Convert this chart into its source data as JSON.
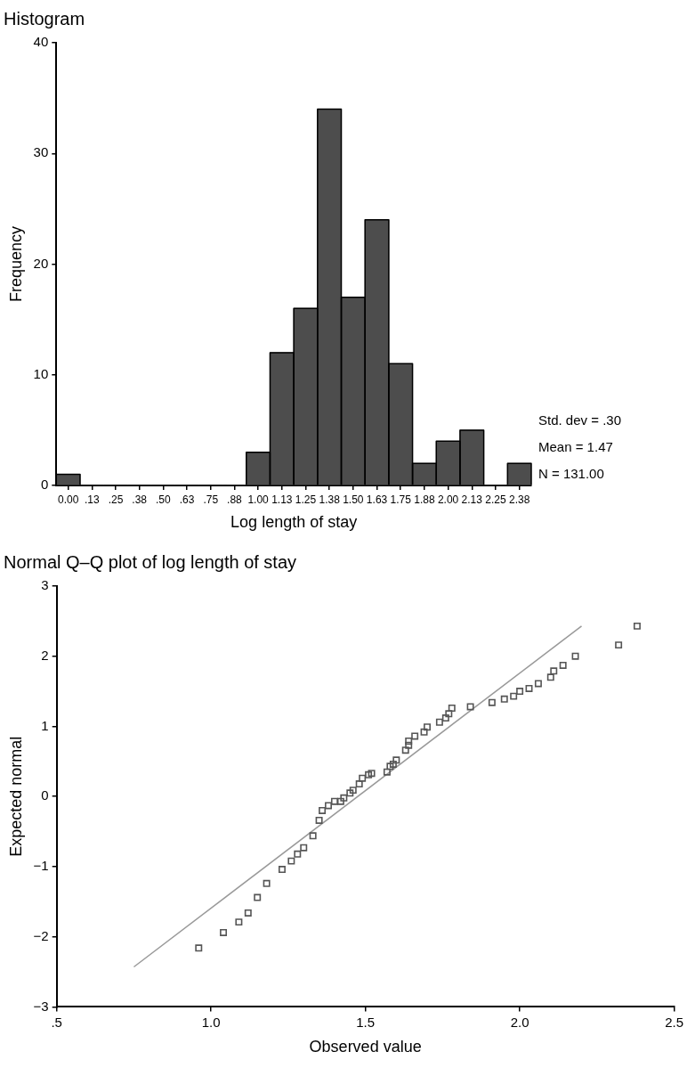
{
  "chart_data": [
    {
      "type": "histogram",
      "title": "Histogram",
      "xlabel": "Log length of stay",
      "ylabel": "Frequency",
      "color": "#4d4d4d",
      "bins": [
        -0.0625,
        0.0625,
        0.1875,
        0.3125,
        0.4375,
        0.5625,
        0.6875,
        0.8125,
        0.9375,
        1.0625,
        1.1875,
        1.3125,
        1.4375,
        1.5625,
        1.6875,
        1.8125,
        1.9375,
        2.0625,
        2.1875,
        2.3125,
        2.4375
      ],
      "values": [
        1,
        0,
        0,
        0,
        0,
        0,
        0,
        0,
        3,
        12,
        16,
        34,
        17,
        24,
        11,
        2,
        4,
        5,
        0,
        2
      ],
      "xlim": [
        -0.0625,
        2.4375
      ],
      "xticks": [
        {
          "value": 0,
          "label": "0.00"
        },
        {
          "value": 0.125,
          "label": ".13"
        },
        {
          "value": 0.25,
          "label": ".25"
        },
        {
          "value": 0.375,
          "label": ".38"
        },
        {
          "value": 0.5,
          "label": ".50"
        },
        {
          "value": 0.625,
          "label": ".63"
        },
        {
          "value": 0.75,
          "label": ".75"
        },
        {
          "value": 0.875,
          "label": ".88"
        },
        {
          "value": 1,
          "label": "1.00"
        },
        {
          "value": 1.125,
          "label": "1.13"
        },
        {
          "value": 1.25,
          "label": "1.25"
        },
        {
          "value": 1.375,
          "label": "1.38"
        },
        {
          "value": 1.5,
          "label": "1.50"
        },
        {
          "value": 1.625,
          "label": "1.63"
        },
        {
          "value": 1.75,
          "label": "1.75"
        },
        {
          "value": 1.875,
          "label": "1.88"
        },
        {
          "value": 2,
          "label": "2.00"
        },
        {
          "value": 2.125,
          "label": "2.13"
        },
        {
          "value": 2.25,
          "label": "2.25"
        },
        {
          "value": 2.375,
          "label": "2.38"
        }
      ],
      "ylim": [
        0,
        40
      ],
      "yticks": [
        0,
        10,
        20,
        30,
        40
      ],
      "grid": false,
      "annotations": [
        "Std. dev = .30",
        "Mean = 1.47",
        "N = 131.00"
      ]
    },
    {
      "type": "scatter",
      "title": "Normal Q–Q plot of log length of stay",
      "xlabel": "Observed value",
      "ylabel": "Expected normal",
      "grid": false,
      "legend": false,
      "xlim": [
        0.5,
        2.5
      ],
      "xticks": [
        {
          "value": 0.5,
          "label": ".5"
        },
        {
          "value": 1,
          "label": "1.0"
        },
        {
          "value": 1.5,
          "label": "1.5"
        },
        {
          "value": 2,
          "label": "2.0"
        },
        {
          "value": 2.5,
          "label": "2.5"
        }
      ],
      "ylim": [
        -3,
        3
      ],
      "yticks": [
        {
          "value": -3,
          "label": "−3"
        },
        {
          "value": -2,
          "label": "−2"
        },
        {
          "value": -1,
          "label": "−1"
        },
        0,
        1,
        2,
        3
      ],
      "series": [
        {
          "type": "scatter",
          "color": "#555555",
          "marker": "square",
          "x": [
            0.96,
            1.04,
            1.09,
            1.12,
            1.15,
            1.18,
            1.23,
            1.26,
            1.28,
            1.3,
            1.33,
            1.35,
            1.36,
            1.38,
            1.4,
            1.42,
            1.43,
            1.45,
            1.46,
            1.48,
            1.49,
            1.51,
            1.52,
            1.57,
            1.58,
            1.59,
            1.6,
            1.63,
            1.64,
            1.64,
            1.66,
            1.69,
            1.7,
            1.74,
            1.76,
            1.77,
            1.78,
            1.84,
            1.91,
            1.95,
            1.98,
            2.0,
            2.03,
            2.06,
            2.1,
            2.11,
            2.14,
            2.18,
            2.32,
            2.38
          ],
          "values": [
            -2.16,
            -1.94,
            -1.79,
            -1.66,
            -1.44,
            -1.24,
            -1.04,
            -0.92,
            -0.82,
            -0.73,
            -0.56,
            -0.34,
            -0.2,
            -0.13,
            -0.07,
            -0.07,
            -0.02,
            0.05,
            0.09,
            0.18,
            0.26,
            0.31,
            0.33,
            0.35,
            0.43,
            0.46,
            0.52,
            0.66,
            0.73,
            0.79,
            0.86,
            0.92,
            0.99,
            1.06,
            1.12,
            1.18,
            1.26,
            1.28,
            1.34,
            1.39,
            1.43,
            1.5,
            1.54,
            1.61,
            1.7,
            1.79,
            1.87,
            2.0,
            2.16,
            2.43
          ]
        },
        {
          "type": "line",
          "color": "#999999",
          "marker": "none",
          "x": [
            0.75,
            2.2
          ],
          "values": [
            -2.43,
            2.43
          ]
        }
      ]
    }
  ]
}
